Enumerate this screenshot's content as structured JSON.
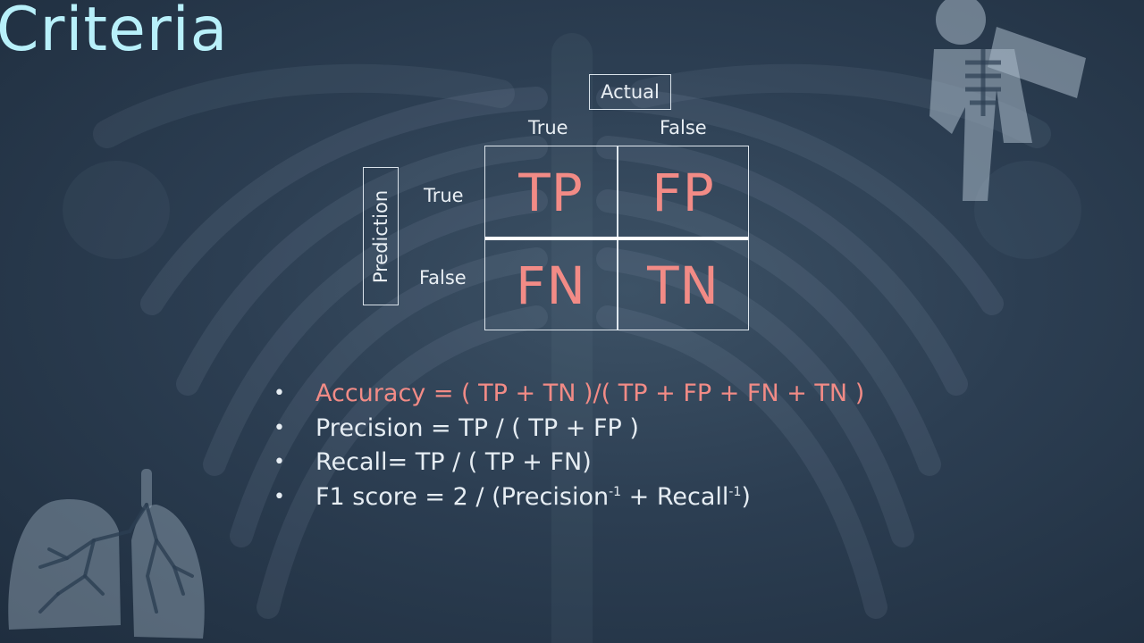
{
  "title": "Criteria",
  "matrix": {
    "actual_label": "Actual",
    "prediction_label": "Prediction",
    "col_true": "True",
    "col_false": "False",
    "row_true": "True",
    "row_false": "False",
    "cells": {
      "tp": "TP",
      "fp": "FP",
      "fn": "FN",
      "tn": "TN"
    }
  },
  "formulas": {
    "accuracy": "Accuracy = ( TP + TN )/( TP + FP + FN + TN )",
    "precision": "Precision = TP / ( TP + FP )",
    "recall": "Recall= TP / ( TP + FN)",
    "f1_prefix": "F1 score = 2 / (Precision",
    "f1_mid": " + Recall",
    "f1_suffix": ")",
    "exponent": "-1"
  },
  "colors": {
    "title": "#b8f0fa",
    "highlight": "#f28b86",
    "text": "#e6edf3",
    "background": "#2c3e52"
  },
  "icons": [
    "ribcage-icon",
    "xray-person-icon",
    "lungs-icon"
  ]
}
